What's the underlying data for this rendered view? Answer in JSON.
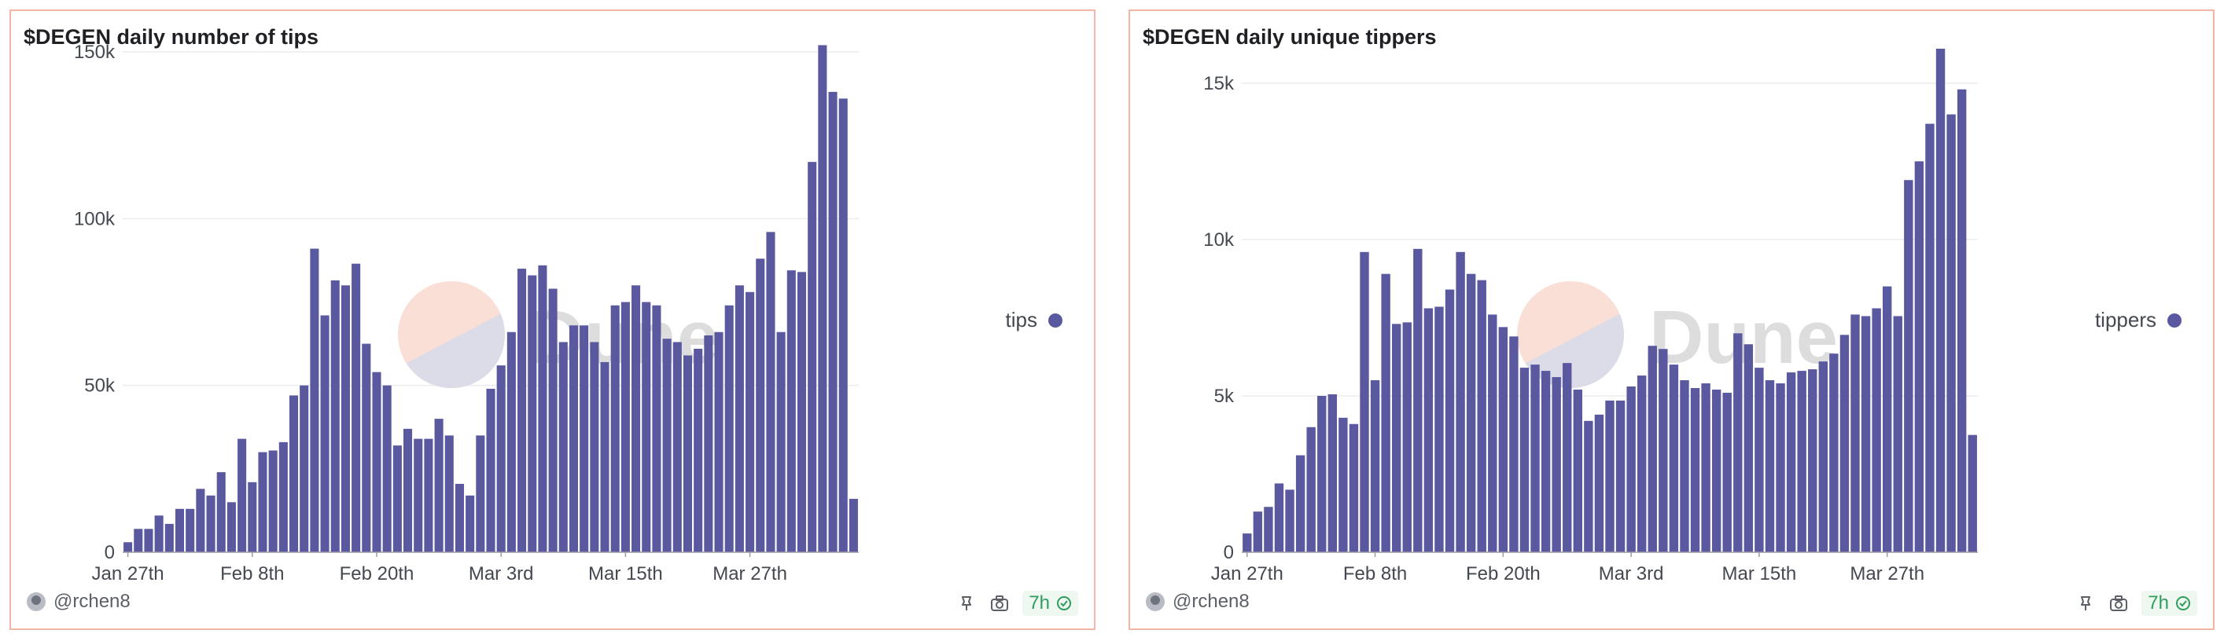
{
  "colors": {
    "bar": "#5a59a0",
    "border": "#f5b5a6",
    "grid": "#ececef",
    "watermark_pie_a": "#fadfd7",
    "watermark_pie_b": "#dcdbe8",
    "watermark_text": "#dddddd",
    "badge_green": "#2f9e5d"
  },
  "watermark": {
    "text": "Dune"
  },
  "panels": [
    {
      "title": "$DEGEN daily number of tips",
      "legend_label": "tips",
      "author": "@rchen8",
      "refresh_badge": "7h",
      "icons": [
        "pin-icon",
        "camera-icon",
        "check-circle-icon"
      ]
    },
    {
      "title": "$DEGEN daily unique tippers",
      "legend_label": "tippers",
      "author": "@rchen8",
      "refresh_badge": "7h",
      "icons": [
        "pin-icon",
        "camera-icon",
        "check-circle-icon"
      ]
    }
  ],
  "chart_data": [
    {
      "type": "bar",
      "title": "$DEGEN daily number of tips",
      "xlabel": "",
      "ylabel": "",
      "series": [
        {
          "name": "tips",
          "color": "#5a59a0"
        }
      ],
      "x_start": "2024-01-27",
      "x_ticks": [
        "Jan 27th",
        "Feb 8th",
        "Feb 20th",
        "Mar 3rd",
        "Mar 15th",
        "Mar 27th"
      ],
      "y_ticks": [
        "0",
        "50k",
        "100k",
        "150k"
      ],
      "y_tick_values": [
        0,
        50000,
        100000,
        150000
      ],
      "ylim": [
        0,
        150000
      ],
      "grid": true,
      "legend_position": "right",
      "values": [
        3000,
        7000,
        7000,
        11000,
        8500,
        13000,
        13000,
        19000,
        17000,
        24000,
        15000,
        34000,
        21000,
        30000,
        30500,
        33000,
        47000,
        50000,
        91000,
        71000,
        81500,
        80000,
        86500,
        62500,
        54000,
        50000,
        32000,
        37000,
        34000,
        34000,
        40000,
        35000,
        20500,
        17000,
        35000,
        49000,
        56000,
        66000,
        85000,
        83000,
        86000,
        79000,
        63000,
        68000,
        68000,
        63000,
        57000,
        74000,
        75000,
        80000,
        75000,
        74000,
        64000,
        63000,
        59000,
        61000,
        65000,
        66000,
        74000,
        80000,
        78000,
        88000,
        96000,
        66000,
        84500,
        84000,
        117000,
        152000,
        138000,
        136000,
        16000
      ]
    },
    {
      "type": "bar",
      "title": "$DEGEN daily unique tippers",
      "xlabel": "",
      "ylabel": "",
      "series": [
        {
          "name": "tippers",
          "color": "#5a59a0"
        }
      ],
      "x_start": "2024-01-27",
      "x_ticks": [
        "Jan 27th",
        "Feb 8th",
        "Feb 20th",
        "Mar 3rd",
        "Mar 15th",
        "Mar 27th"
      ],
      "y_ticks": [
        "0",
        "5k",
        "10k",
        "15k"
      ],
      "y_tick_values": [
        0,
        5000,
        10000,
        15000
      ],
      "ylim": [
        0,
        16000
      ],
      "grid": true,
      "legend_position": "right",
      "values": [
        600,
        1300,
        1450,
        2200,
        2000,
        3100,
        4000,
        5000,
        5050,
        4300,
        4100,
        9600,
        5500,
        8900,
        7300,
        7350,
        9700,
        7800,
        7850,
        8400,
        9600,
        8900,
        8700,
        7600,
        7200,
        6900,
        5900,
        6000,
        5800,
        5600,
        6050,
        5200,
        4200,
        4400,
        4850,
        4850,
        5300,
        5650,
        6600,
        6500,
        6000,
        5500,
        5250,
        5400,
        5200,
        5100,
        7000,
        6650,
        5900,
        5500,
        5400,
        5750,
        5800,
        5850,
        6100,
        6350,
        6950,
        7600,
        7550,
        7800,
        8500,
        7550,
        11900,
        12500,
        13700,
        16100,
        14000,
        14800,
        3750
      ]
    }
  ]
}
